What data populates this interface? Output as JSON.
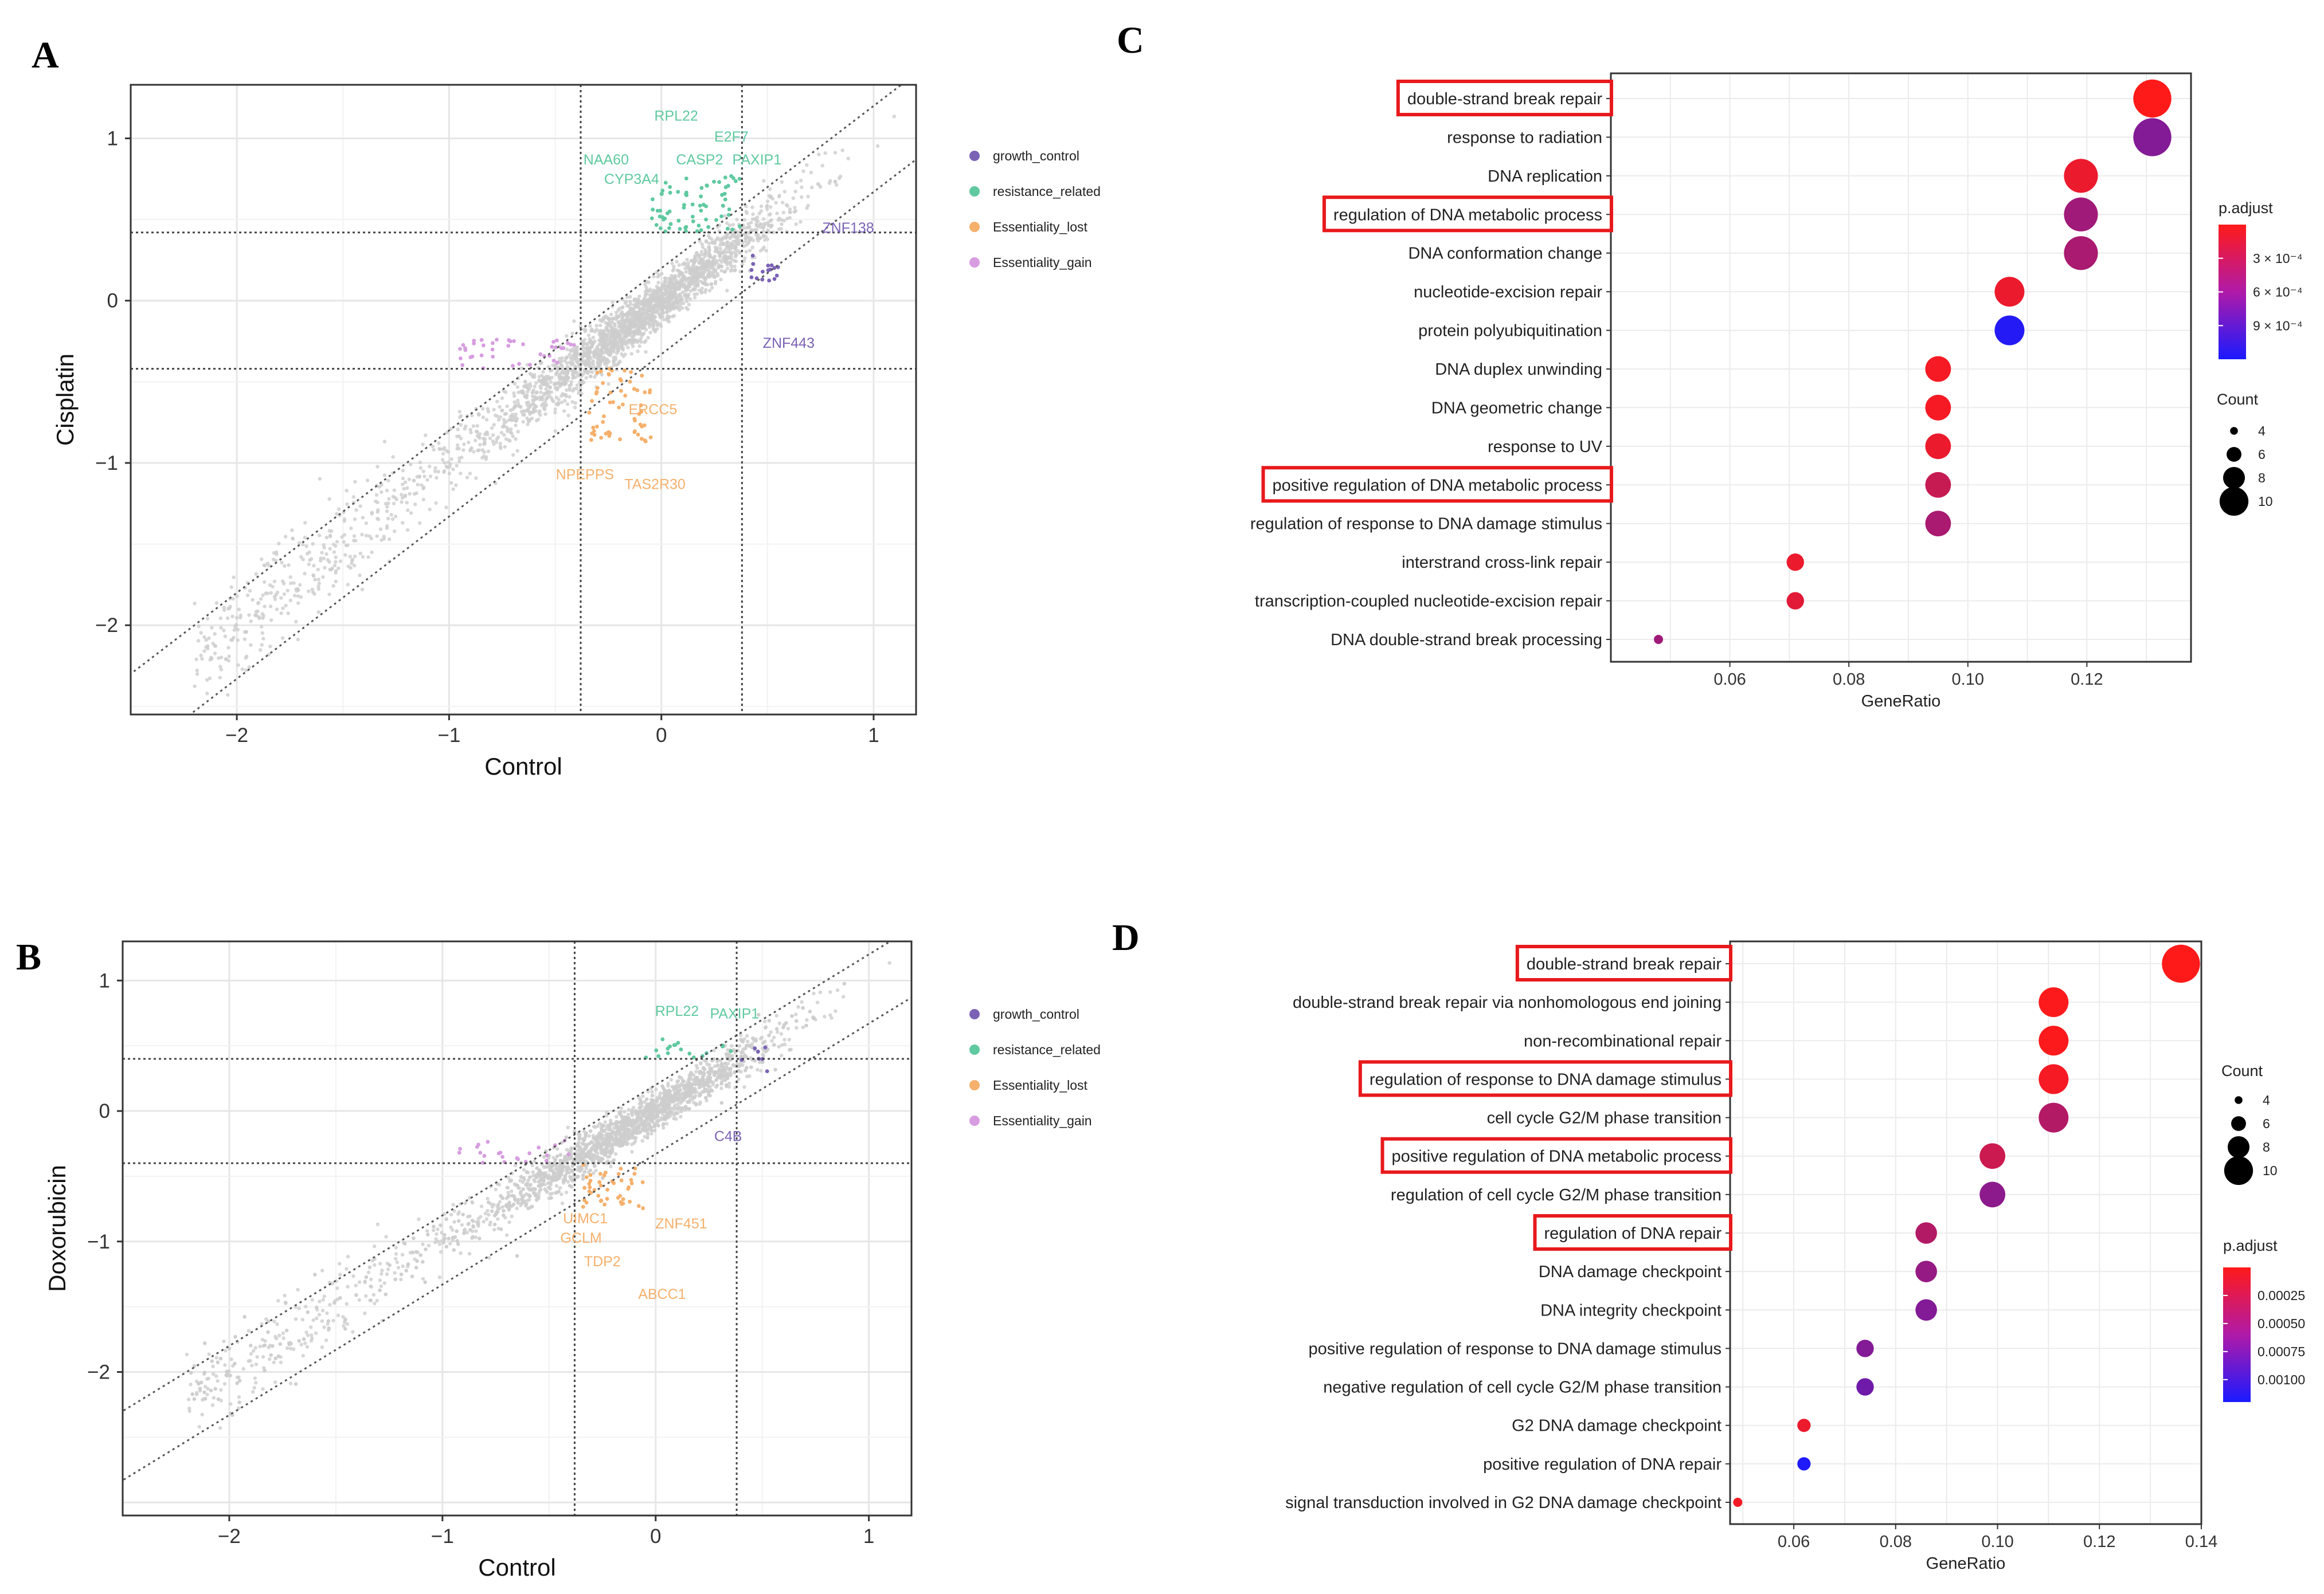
{
  "panels": {
    "A": "A",
    "B": "B",
    "C": "C",
    "D": "D"
  },
  "colors": {
    "growth_control": "#7b62b5",
    "resistance_related": "#5fc9a0",
    "Essentiality_lost": "#f5b06c",
    "Essentiality_gain": "#d79de0",
    "background": "#cdcdcd",
    "highlight_box": "#e8191c",
    "padj_high": "#ff1a1a",
    "padj_low": "#1a1aff"
  },
  "legend_scatter": [
    {
      "key": "growth_control",
      "label": "growth_control"
    },
    {
      "key": "resistance_related",
      "label": "resistance_related"
    },
    {
      "key": "Essentiality_lost",
      "label": "Essentiality_lost"
    },
    {
      "key": "Essentiality_gain",
      "label": "Essentiality_gain"
    }
  ],
  "chart_data": [
    {
      "id": "A",
      "type": "scatter",
      "xlabel": "Control",
      "ylabel": "Cisplatin",
      "xlim": [
        -2.5,
        1.2
      ],
      "ylim": [
        -2.55,
        1.33
      ],
      "xticks": [
        -2,
        -1,
        0,
        1
      ],
      "yticks": [
        -2,
        -1,
        0,
        1
      ],
      "threshold_x": [
        -0.38,
        0.38
      ],
      "threshold_y": [
        -0.42,
        0.42
      ],
      "diagonal_offsets": [
        0.2,
        -0.33
      ],
      "gene_labels": [
        {
          "gene": "RPL22",
          "x": 0.07,
          "y": 1.11,
          "group": "resistance_related"
        },
        {
          "gene": "E2F7",
          "x": 0.33,
          "y": 0.98,
          "group": "resistance_related"
        },
        {
          "gene": "NAA60",
          "x": -0.26,
          "y": 0.84,
          "group": "resistance_related"
        },
        {
          "gene": "CASP2",
          "x": 0.18,
          "y": 0.84,
          "group": "resistance_related"
        },
        {
          "gene": "PAXIP1",
          "x": 0.45,
          "y": 0.84,
          "group": "resistance_related"
        },
        {
          "gene": "CYP3A4",
          "x": -0.14,
          "y": 0.72,
          "group": "resistance_related"
        },
        {
          "gene": "ZNF138",
          "x": 0.88,
          "y": 0.42,
          "group": "growth_control"
        },
        {
          "gene": "ZNF443",
          "x": 0.6,
          "y": -0.29,
          "group": "growth_control"
        },
        {
          "gene": "ERCC5",
          "x": -0.04,
          "y": -0.7,
          "group": "Essentiality_lost"
        },
        {
          "gene": "NPEPPS",
          "x": -0.36,
          "y": -1.1,
          "group": "Essentiality_lost"
        },
        {
          "gene": "TAS2R30",
          "x": -0.03,
          "y": -1.16,
          "group": "Essentiality_lost"
        }
      ]
    },
    {
      "id": "B",
      "type": "scatter",
      "xlabel": "Control",
      "ylabel": "Doxorubicin",
      "xlim": [
        -2.5,
        1.2
      ],
      "ylim": [
        -3.1,
        1.3
      ],
      "xticks": [
        -2,
        -1,
        0,
        1
      ],
      "yticks": [
        -2,
        -1,
        0,
        1
      ],
      "threshold_x": [
        -0.38,
        0.38
      ],
      "threshold_y": [
        -0.4,
        0.4
      ],
      "diagonal_offsets": [
        0.2,
        -0.33
      ],
      "gene_labels": [
        {
          "gene": "RPL22",
          "x": 0.1,
          "y": 0.73,
          "group": "resistance_related"
        },
        {
          "gene": "PAXIP1",
          "x": 0.37,
          "y": 0.71,
          "group": "resistance_related"
        },
        {
          "gene": "C4B",
          "x": 0.34,
          "y": -0.23,
          "group": "growth_control"
        },
        {
          "gene": "UIMC1",
          "x": -0.33,
          "y": -0.86,
          "group": "Essentiality_lost"
        },
        {
          "gene": "ZNF451",
          "x": 0.12,
          "y": -0.9,
          "group": "Essentiality_lost"
        },
        {
          "gene": "GCLM",
          "x": -0.35,
          "y": -1.01,
          "group": "Essentiality_lost"
        },
        {
          "gene": "TDP2",
          "x": -0.25,
          "y": -1.19,
          "group": "Essentiality_lost"
        },
        {
          "gene": "ABCC1",
          "x": 0.03,
          "y": -1.44,
          "group": "Essentiality_lost"
        }
      ]
    },
    {
      "id": "C",
      "type": "scatter",
      "title": "",
      "xlabel": "GeneRatio",
      "ylabel": "",
      "xlim": [
        0.04,
        0.1375
      ],
      "xticks": [
        0.06,
        0.08,
        0.1,
        0.12
      ],
      "xtick_labels": [
        "0.06",
        "0.08",
        "0.10",
        "0.12"
      ],
      "terms": [
        {
          "term": "double-strand break repair",
          "gene_ratio": 0.131,
          "count": 11,
          "p_adjust": 0.0,
          "highlight": true
        },
        {
          "term": "response to radiation",
          "gene_ratio": 0.131,
          "count": 11,
          "p_adjust": 0.00065,
          "highlight": false
        },
        {
          "term": "DNA replication",
          "gene_ratio": 0.119,
          "count": 10,
          "p_adjust": 0.0001,
          "highlight": false
        },
        {
          "term": "regulation of DNA metabolic process",
          "gene_ratio": 0.119,
          "count": 10,
          "p_adjust": 0.0005,
          "highlight": true
        },
        {
          "term": "DNA conformation change",
          "gene_ratio": 0.119,
          "count": 10,
          "p_adjust": 0.00045,
          "highlight": false
        },
        {
          "term": "nucleotide-excision repair",
          "gene_ratio": 0.107,
          "count": 9,
          "p_adjust": 0.0001,
          "highlight": false
        },
        {
          "term": "protein polyubiquitination",
          "gene_ratio": 0.107,
          "count": 9,
          "p_adjust": 0.00115,
          "highlight": false
        },
        {
          "term": "DNA duplex unwinding",
          "gene_ratio": 0.095,
          "count": 8,
          "p_adjust": 5e-05,
          "highlight": false
        },
        {
          "term": "DNA geometric change",
          "gene_ratio": 0.095,
          "count": 8,
          "p_adjust": 5e-05,
          "highlight": false
        },
        {
          "term": "response to UV",
          "gene_ratio": 0.095,
          "count": 8,
          "p_adjust": 0.0001,
          "highlight": false
        },
        {
          "term": "positive regulation of DNA metabolic process",
          "gene_ratio": 0.095,
          "count": 8,
          "p_adjust": 0.0003,
          "highlight": true
        },
        {
          "term": "regulation of response to DNA damage stimulus",
          "gene_ratio": 0.095,
          "count": 8,
          "p_adjust": 0.00045,
          "highlight": false
        },
        {
          "term": "interstrand cross-link repair",
          "gene_ratio": 0.071,
          "count": 6,
          "p_adjust": 0.0001,
          "highlight": false
        },
        {
          "term": "transcription-coupled nucleotide-excision repair",
          "gene_ratio": 0.071,
          "count": 6,
          "p_adjust": 0.00015,
          "highlight": false
        },
        {
          "term": "DNA double-strand break processing",
          "gene_ratio": 0.048,
          "count": 4,
          "p_adjust": 0.0005,
          "highlight": false
        }
      ],
      "p_adjust_range": [
        0.0,
        0.0012
      ],
      "legend_p_title": "p.adjust",
      "legend_p_labels": [
        "3 × 10⁻⁴",
        "6 × 10⁻⁴",
        "9 × 10⁻⁴"
      ],
      "legend_p_values": [
        0.0003,
        0.0006,
        0.0009
      ],
      "legend_count_title": "Count",
      "legend_counts": [
        4,
        6,
        8,
        10
      ]
    },
    {
      "id": "D",
      "type": "scatter",
      "title": "",
      "xlabel": "GeneRatio",
      "ylabel": "",
      "xlim": [
        0.0475,
        0.14
      ],
      "xticks": [
        0.06,
        0.08,
        0.1,
        0.12,
        0.14
      ],
      "xtick_labels": [
        "0.06",
        "0.08",
        "0.10",
        "0.12",
        "0.14"
      ],
      "terms": [
        {
          "term": "double-strand break repair",
          "gene_ratio": 0.136,
          "count": 11,
          "p_adjust": 0.0,
          "highlight": true
        },
        {
          "term": "double-strand break repair via nonhomologous end joining",
          "gene_ratio": 0.111,
          "count": 9,
          "p_adjust": 1e-05,
          "highlight": false
        },
        {
          "term": "non-recombinational repair",
          "gene_ratio": 0.111,
          "count": 9,
          "p_adjust": 1e-05,
          "highlight": false
        },
        {
          "term": "regulation of response to DNA damage stimulus",
          "gene_ratio": 0.111,
          "count": 9,
          "p_adjust": 5e-05,
          "highlight": true
        },
        {
          "term": "cell cycle G2/M phase transition",
          "gene_ratio": 0.111,
          "count": 9,
          "p_adjust": 0.0004,
          "highlight": false
        },
        {
          "term": "positive regulation of DNA metabolic process",
          "gene_ratio": 0.099,
          "count": 8,
          "p_adjust": 0.00028,
          "highlight": true
        },
        {
          "term": "regulation of cell cycle G2/M phase transition",
          "gene_ratio": 0.099,
          "count": 8,
          "p_adjust": 0.0006,
          "highlight": false
        },
        {
          "term": "regulation of DNA repair",
          "gene_ratio": 0.086,
          "count": 7,
          "p_adjust": 0.0004,
          "highlight": true
        },
        {
          "term": "DNA damage checkpoint",
          "gene_ratio": 0.086,
          "count": 7,
          "p_adjust": 0.00055,
          "highlight": false
        },
        {
          "term": "DNA integrity checkpoint",
          "gene_ratio": 0.086,
          "count": 7,
          "p_adjust": 0.00065,
          "highlight": false
        },
        {
          "term": "positive regulation of response to DNA damage stimulus",
          "gene_ratio": 0.074,
          "count": 6,
          "p_adjust": 0.00065,
          "highlight": false
        },
        {
          "term": "negative regulation of cell cycle G2/M phase transition",
          "gene_ratio": 0.074,
          "count": 6,
          "p_adjust": 0.00075,
          "highlight": false
        },
        {
          "term": "G2 DNA damage checkpoint",
          "gene_ratio": 0.062,
          "count": 5,
          "p_adjust": 0.0001,
          "highlight": false
        },
        {
          "term": "positive regulation of DNA repair",
          "gene_ratio": 0.062,
          "count": 5,
          "p_adjust": 0.00118,
          "highlight": false
        },
        {
          "term": "signal transduction involved in G2 DNA damage checkpoint",
          "gene_ratio": 0.049,
          "count": 4,
          "p_adjust": 5e-05,
          "highlight": false
        }
      ],
      "p_adjust_range": [
        0.0,
        0.0012
      ],
      "legend_p_title": "p.adjust",
      "legend_p_labels": [
        "0.00025",
        "0.00050",
        "0.00075",
        "0.00100"
      ],
      "legend_p_values": [
        0.00025,
        0.0005,
        0.00075,
        0.001
      ],
      "legend_count_title": "Count",
      "legend_counts": [
        4,
        6,
        8,
        10
      ]
    }
  ]
}
